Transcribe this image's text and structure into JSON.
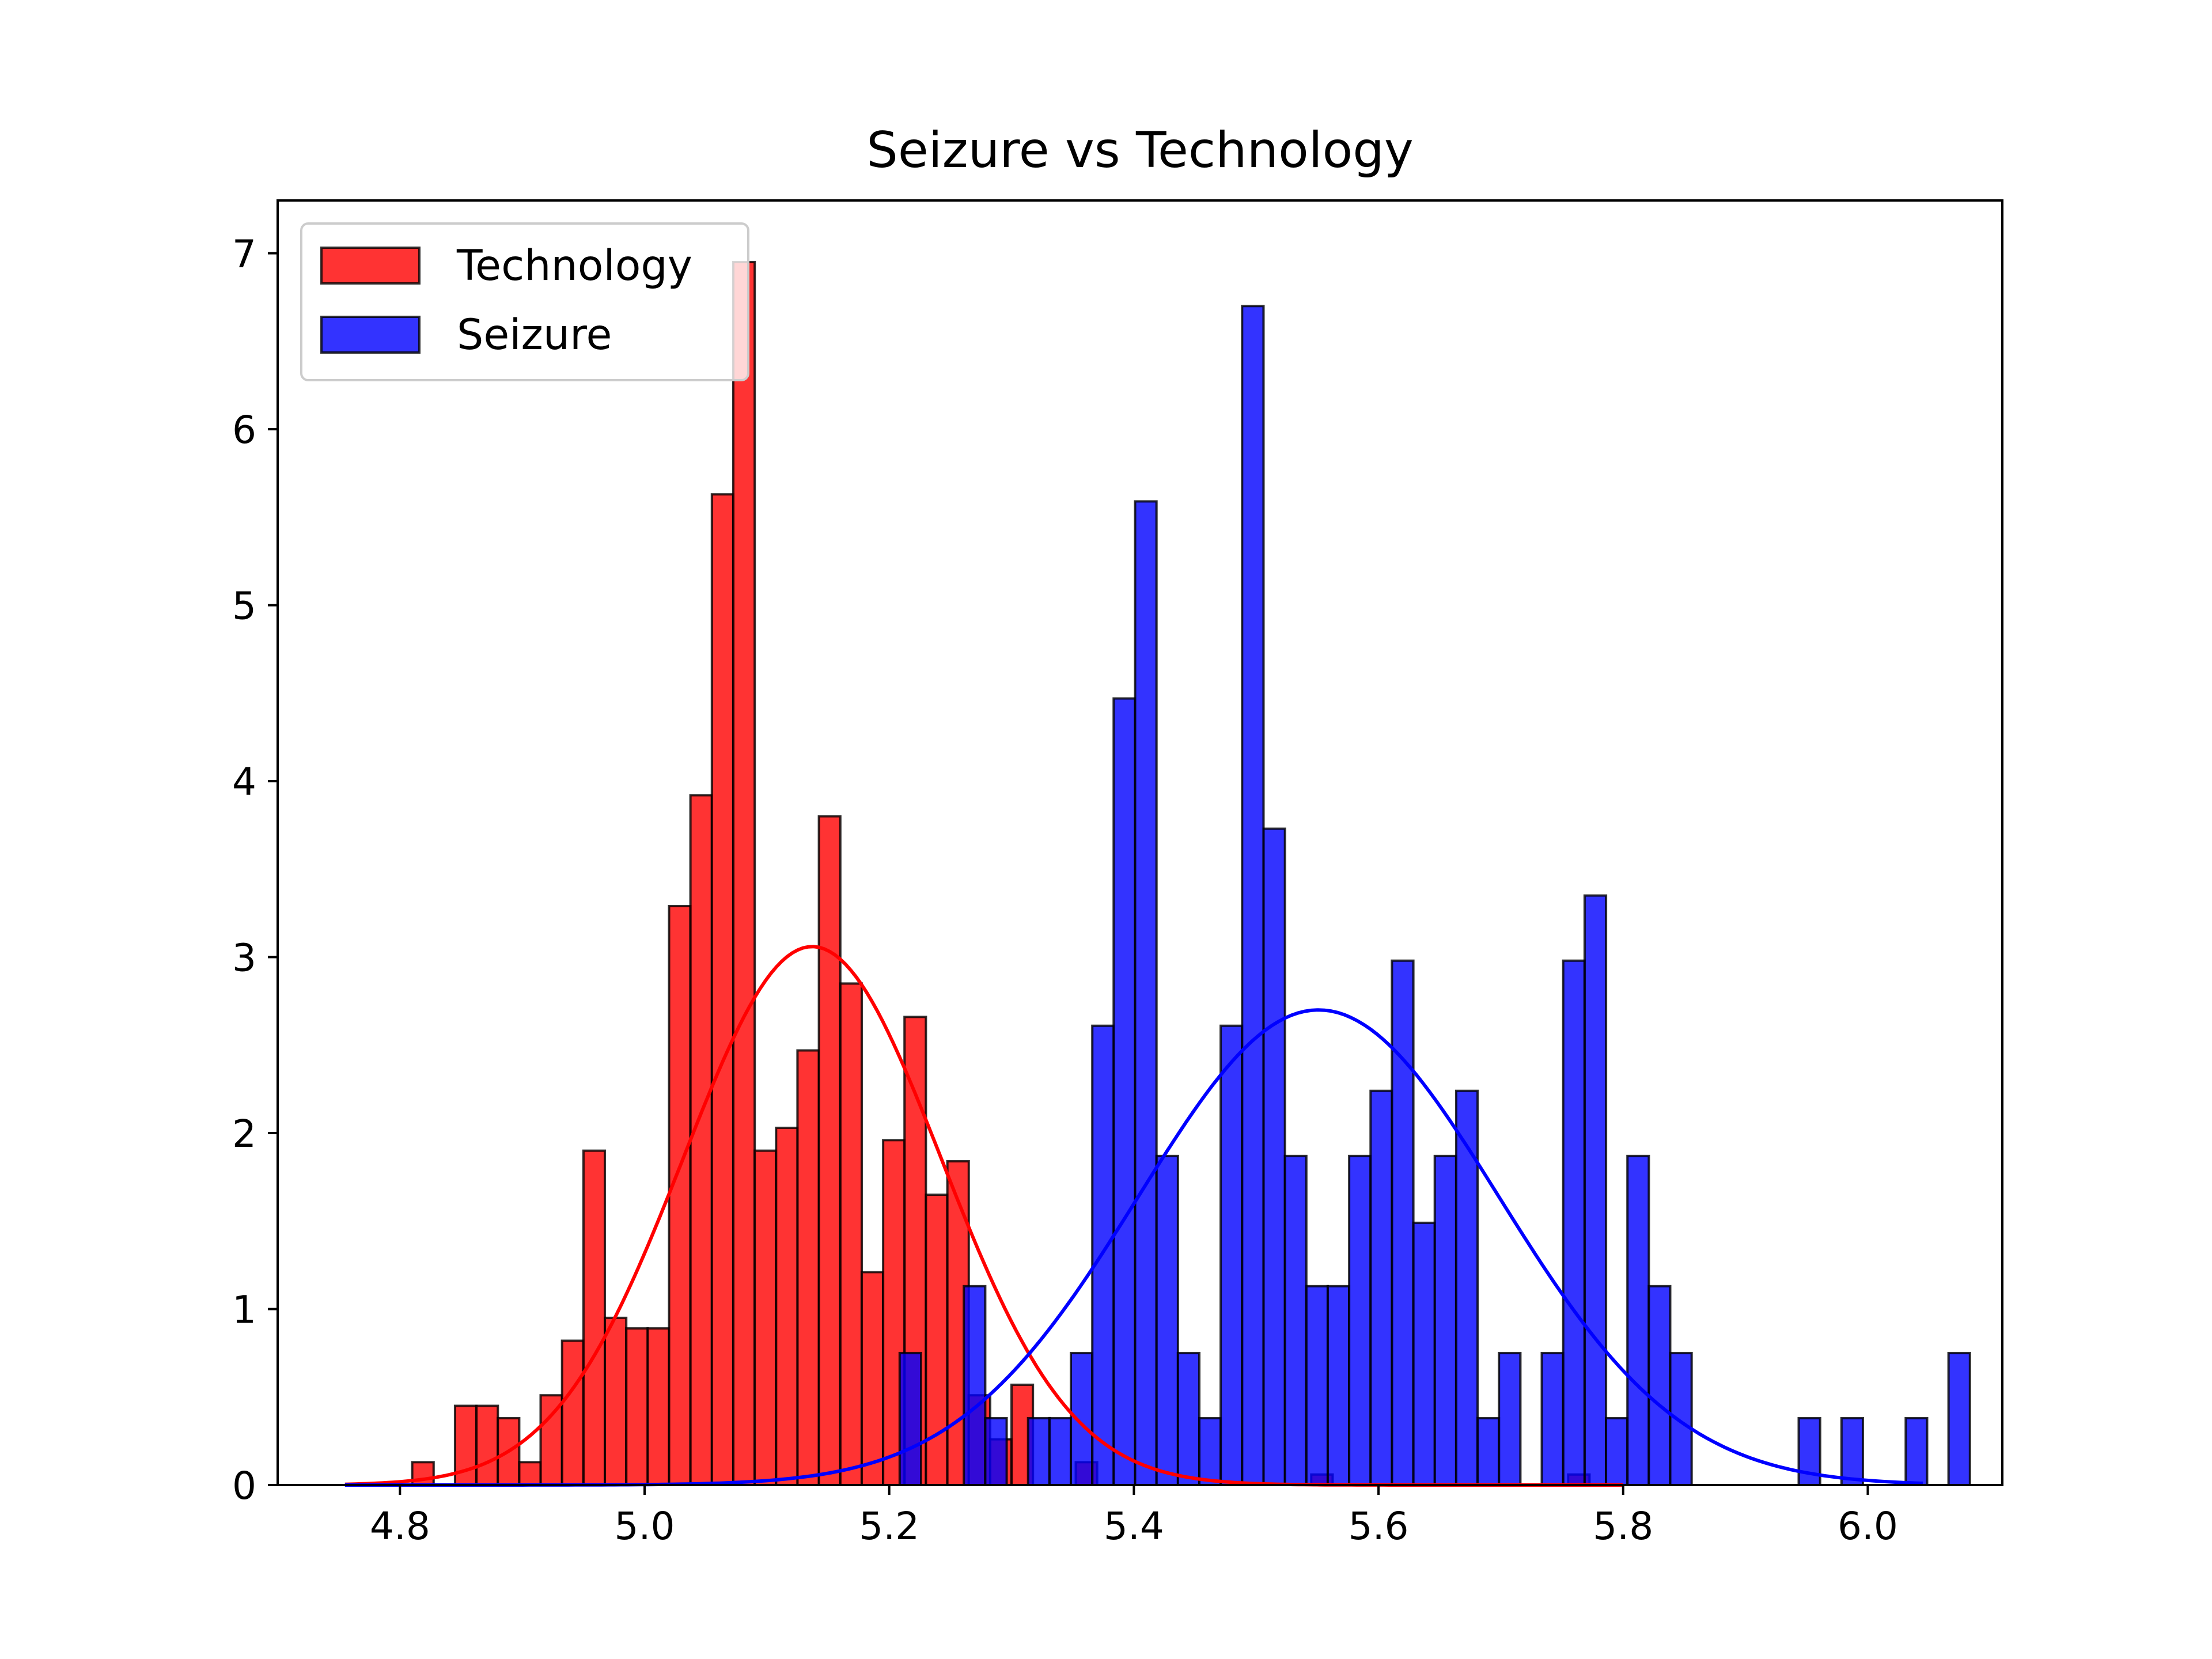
{
  "chart_data": {
    "type": "bar",
    "title": "Seizure vs Technology",
    "xlabel": "",
    "ylabel": "",
    "xlim": [
      4.7,
      6.11
    ],
    "ylim": [
      0,
      7.3
    ],
    "xticks": [
      4.8,
      5.0,
      5.2,
      5.4,
      5.6,
      5.8,
      6.0
    ],
    "xtick_labels": [
      "4.8",
      "5.0",
      "5.2",
      "5.4",
      "5.6",
      "5.8",
      "6.0"
    ],
    "yticks": [
      0,
      1,
      2,
      3,
      4,
      5,
      6,
      7
    ],
    "ytick_labels": [
      "0",
      "1",
      "2",
      "3",
      "4",
      "5",
      "6",
      "7"
    ],
    "grid": false,
    "legend": {
      "placement": "upper-left"
    },
    "bin_width": 0.0175,
    "series": [
      {
        "name": "Technology",
        "color": "#ff0000",
        "curve_color": "#ff0000",
        "bin_start": 4.81,
        "values": [
          0.13,
          0.0,
          0.45,
          0.45,
          0.38,
          0.13,
          0.51,
          0.82,
          1.9,
          0.95,
          0.89,
          0.89,
          3.29,
          3.92,
          5.63,
          6.95,
          1.9,
          2.03,
          2.47,
          3.8,
          2.85,
          1.21,
          1.96,
          2.66,
          1.65,
          1.84,
          0.51,
          0.26,
          0.57,
          0.0,
          0.0,
          0.13,
          0.0,
          0.0,
          0.0,
          0.0,
          0.0,
          0.0,
          0.0,
          0.0,
          0.0,
          0.0,
          0.06,
          0.0,
          0.0,
          0.0,
          0.0,
          0.0,
          0.0,
          0.0,
          0.0,
          0.0,
          0.0,
          0.0,
          0.06
        ],
        "curve": {
          "mean": 5.137,
          "peak": 3.06,
          "sigma": 0.1055,
          "x_range": [
            4.755,
            5.8
          ]
        }
      },
      {
        "name": "Seizure",
        "color": "#0000ff",
        "curve_color": "#0000ff",
        "bin_start": 5.2085,
        "values": [
          0.75,
          0.0,
          0.0,
          1.13,
          0.38,
          0.0,
          0.38,
          0.38,
          0.75,
          2.61,
          4.47,
          5.59,
          1.87,
          0.75,
          0.38,
          2.61,
          6.7,
          3.73,
          1.87,
          1.13,
          1.13,
          1.87,
          2.24,
          2.98,
          1.49,
          1.87,
          2.24,
          0.38,
          0.75,
          0.0,
          0.75,
          2.98,
          3.35,
          0.38,
          1.87,
          1.13,
          0.75,
          0.0,
          0.0,
          0.0,
          0.0,
          0.0,
          0.38,
          0.0,
          0.38,
          0.0,
          0.0,
          0.38,
          0.0,
          0.75
        ],
        "curve": {
          "mean": 5.551,
          "peak": 2.7,
          "sigma": 0.1475,
          "x_range": [
            4.755,
            6.045
          ]
        }
      }
    ]
  }
}
